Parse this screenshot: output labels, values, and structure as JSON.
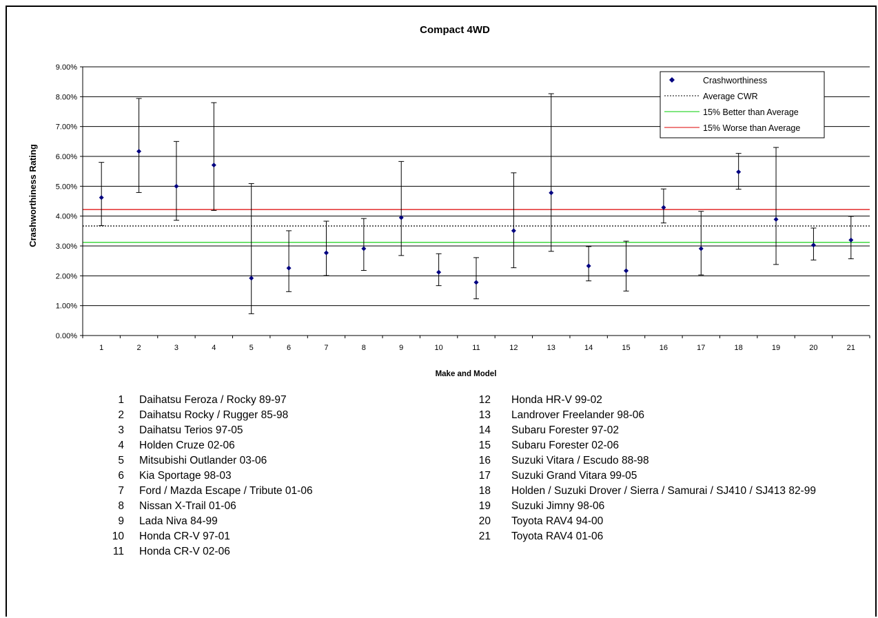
{
  "chart_data": {
    "type": "scatter",
    "title": "Compact 4WD",
    "xlabel": "Make and Model",
    "ylabel": "Crashworthiness Rating",
    "ylim": [
      0,
      0.09
    ],
    "y_ticks": [
      "0.00%",
      "1.00%",
      "2.00%",
      "3.00%",
      "4.00%",
      "5.00%",
      "6.00%",
      "7.00%",
      "8.00%",
      "9.00%"
    ],
    "x": [
      1,
      2,
      3,
      4,
      5,
      6,
      7,
      8,
      9,
      10,
      11,
      12,
      13,
      14,
      15,
      16,
      17,
      18,
      19,
      20,
      21
    ],
    "x_ticks": [
      "1",
      "2",
      "3",
      "4",
      "5",
      "6",
      "7",
      "8",
      "9",
      "10",
      "11",
      "12",
      "13",
      "14",
      "15",
      "16",
      "17",
      "18",
      "19",
      "20",
      "21"
    ],
    "grid": true,
    "legend_position": "top-right",
    "series": [
      {
        "name": "Crashworthiness",
        "kind": "points-with-error-bars",
        "color": "#000080",
        "values": [
          0.0462,
          0.0617,
          0.05,
          0.0571,
          0.0192,
          0.0226,
          0.0277,
          0.0291,
          0.0395,
          0.0212,
          0.0178,
          0.0351,
          0.0478,
          0.0233,
          0.0217,
          0.0429,
          0.0291,
          0.0548,
          0.0389,
          0.0303,
          0.032
        ],
        "lower": [
          0.0368,
          0.0479,
          0.0386,
          0.0419,
          0.0073,
          0.0147,
          0.0201,
          0.0218,
          0.0268,
          0.0167,
          0.0123,
          0.0227,
          0.0282,
          0.0183,
          0.0149,
          0.0377,
          0.0203,
          0.049,
          0.0238,
          0.0253,
          0.0257
        ],
        "upper": [
          0.058,
          0.0794,
          0.065,
          0.078,
          0.0509,
          0.0351,
          0.0383,
          0.0392,
          0.0583,
          0.0274,
          0.0261,
          0.0545,
          0.081,
          0.0298,
          0.0316,
          0.0491,
          0.0416,
          0.061,
          0.063,
          0.036,
          0.0399
        ]
      },
      {
        "name": "Average CWR",
        "kind": "hline",
        "value": 0.0367,
        "color": "#000000",
        "dash": "dotted"
      },
      {
        "name": "15% Better than Average",
        "kind": "hline",
        "value": 0.0312,
        "color": "#00cc00"
      },
      {
        "name": "15% Worse than Average",
        "kind": "hline",
        "value": 0.0422,
        "color": "#dd0000"
      }
    ]
  },
  "models_left": [
    {
      "num": "1",
      "name": "Daihatsu Feroza / Rocky 89-97"
    },
    {
      "num": "2",
      "name": "Daihatsu Rocky / Rugger 85-98"
    },
    {
      "num": "3",
      "name": "Daihatsu Terios 97-05"
    },
    {
      "num": "4",
      "name": "Holden Cruze 02-06"
    },
    {
      "num": "5",
      "name": "Mitsubishi Outlander 03-06"
    },
    {
      "num": "6",
      "name": "Kia Sportage 98-03"
    },
    {
      "num": "7",
      "name": "Ford / Mazda Escape / Tribute 01-06"
    },
    {
      "num": "8",
      "name": "Nissan X-Trail 01-06"
    },
    {
      "num": "9",
      "name": "Lada Niva 84-99"
    },
    {
      "num": "10",
      "name": "Honda CR-V 97-01"
    },
    {
      "num": "11",
      "name": "Honda  CR-V 02-06"
    }
  ],
  "models_right": [
    {
      "num": "12",
      "name": "Honda HR-V 99-02"
    },
    {
      "num": "13",
      "name": "Landrover Freelander 98-06"
    },
    {
      "num": "14",
      "name": "Subaru Forester 97-02"
    },
    {
      "num": "15",
      "name": "Subaru Forester 02-06"
    },
    {
      "num": "16",
      "name": "Suzuki Vitara / Escudo 88-98"
    },
    {
      "num": "17",
      "name": "Suzuki Grand Vitara 99-05"
    },
    {
      "num": "18",
      "name": "Holden / Suzuki Drover / Sierra / Samurai / SJ410 / SJ413 82-99"
    },
    {
      "num": "19",
      "name": "Suzuki Jimny 98-06"
    },
    {
      "num": "20",
      "name": "Toyota RAV4 94-00"
    },
    {
      "num": "21",
      "name": "Toyota RAV4 01-06"
    }
  ]
}
